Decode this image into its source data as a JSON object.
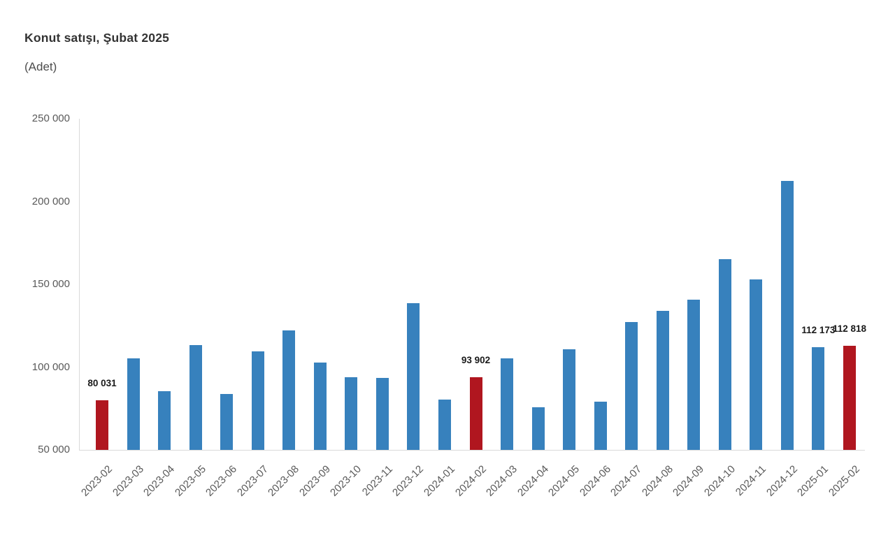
{
  "title": "Konut satışı, Şubat 2025",
  "subtitle": "(Adet)",
  "colors": {
    "bar_default": "#3781bd",
    "bar_highlight": "#b0161f",
    "axis_line": "#d9d9d9",
    "tick_label": "#595959",
    "value_label": "#1a1a1a",
    "title": "#333333",
    "background": "#ffffff"
  },
  "chart_data": {
    "type": "bar",
    "title": "Konut satışı, Şubat 2025",
    "subtitle": "(Adet)",
    "xlabel": "",
    "ylabel": "Adet",
    "grid": false,
    "legend": null,
    "ylim": [
      50000,
      250000
    ],
    "ytick_values": [
      50000,
      100000,
      150000,
      200000,
      250000
    ],
    "ytick_labels": [
      "50 000",
      "100 000",
      "150 000",
      "200 000",
      "250 000"
    ],
    "x_label_rotation_deg": 45,
    "categories": [
      "2023-02",
      "2023-03",
      "2023-04",
      "2023-05",
      "2023-06",
      "2023-07",
      "2023-08",
      "2023-09",
      "2023-10",
      "2023-11",
      "2023-12",
      "2024-01",
      "2024-02",
      "2024-03",
      "2024-04",
      "2024-05",
      "2024-06",
      "2024-07",
      "2024-08",
      "2024-09",
      "2024-10",
      "2024-11",
      "2024-12",
      "2025-01",
      "2025-02"
    ],
    "values": [
      80031,
      105476,
      85652,
      113112,
      83636,
      109548,
      122091,
      102656,
      93761,
      93514,
      138577,
      80308,
      93902,
      105394,
      75569,
      110588,
      79313,
      127088,
      134155,
      140919,
      165138,
      153014,
      212637,
      112173,
      112818
    ],
    "highlighted_categories": [
      "2023-02",
      "2024-02",
      "2025-02"
    ],
    "data_labels": [
      {
        "category": "2023-02",
        "label": "80 031"
      },
      {
        "category": "2024-02",
        "label": "93 902"
      },
      {
        "category": "2025-01",
        "label": "112 173"
      },
      {
        "category": "2025-02",
        "label": "112 818"
      }
    ]
  }
}
